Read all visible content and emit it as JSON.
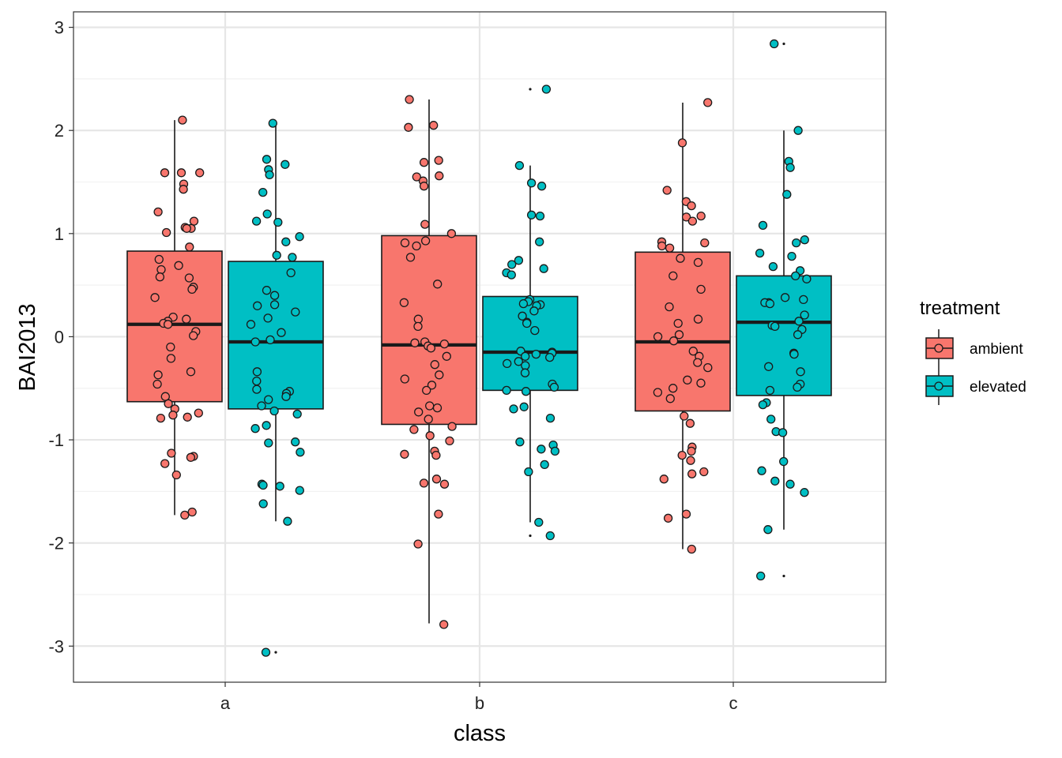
{
  "chart_data": {
    "type": "boxplot",
    "xlabel": "class",
    "ylabel": "BAI2013",
    "categories": [
      "a",
      "b",
      "c"
    ],
    "ylim": [
      -3.35,
      3.15
    ],
    "yticks": [
      -3,
      -2,
      -1,
      0,
      1,
      2,
      3
    ],
    "ytick_labels": [
      "-3",
      "-2",
      "-1",
      "0",
      "1",
      "2",
      "3"
    ],
    "grid": true,
    "legend": {
      "title": "treatment",
      "position": "right"
    },
    "series": [
      {
        "name": "ambient",
        "color": "#F8766D",
        "boxes": [
          {
            "category": "a",
            "whisker_low": -1.73,
            "q1": -0.63,
            "median": 0.12,
            "q3": 0.83,
            "whisker_high": 2.1,
            "outliers": []
          },
          {
            "category": "b",
            "whisker_low": -2.78,
            "q1": -0.85,
            "median": -0.08,
            "q3": 0.98,
            "whisker_high": 2.3,
            "outliers": []
          },
          {
            "category": "c",
            "whisker_low": -2.06,
            "q1": -0.72,
            "median": -0.05,
            "q3": 0.82,
            "whisker_high": 2.27,
            "outliers": []
          }
        ],
        "points": [
          {
            "category": "a",
            "values": [
              2.1,
              1.59,
              1.59,
              1.59,
              1.48,
              1.43,
              1.21,
              1.12,
              1.06,
              1.05,
              1.05,
              1.01,
              0.87,
              0.75,
              0.69,
              0.65,
              0.58,
              0.57,
              0.48,
              0.46,
              0.38,
              0.19,
              0.17,
              0.15,
              0.13,
              0.12,
              0.05,
              0.01,
              -0.1,
              -0.21,
              -0.34,
              -0.37,
              -0.46,
              -0.58,
              -0.65,
              -0.7,
              -0.74,
              -0.76,
              -0.78,
              -0.79,
              -1.13,
              -1.16,
              -1.17,
              -1.23,
              -1.34,
              -1.7,
              -1.73
            ]
          },
          {
            "category": "b",
            "values": [
              2.3,
              2.05,
              2.03,
              1.71,
              1.69,
              1.56,
              1.55,
              1.51,
              1.46,
              1.09,
              1.0,
              0.93,
              0.91,
              0.88,
              0.77,
              0.51,
              0.33,
              0.17,
              0.1,
              -0.05,
              -0.06,
              -0.07,
              -0.09,
              -0.11,
              -0.19,
              -0.27,
              -0.37,
              -0.41,
              -0.47,
              -0.52,
              -0.67,
              -0.69,
              -0.73,
              -0.8,
              -0.87,
              -0.9,
              -0.96,
              -1.01,
              -1.11,
              -1.14,
              -1.15,
              -1.38,
              -1.42,
              -1.43,
              -1.72,
              -2.01,
              -2.79
            ]
          },
          {
            "category": "c",
            "values": [
              2.27,
              1.88,
              1.42,
              1.31,
              1.27,
              1.17,
              1.16,
              1.12,
              0.92,
              0.91,
              0.88,
              0.86,
              0.76,
              0.72,
              0.59,
              0.46,
              0.29,
              0.17,
              0.13,
              0.02,
              0.0,
              -0.04,
              -0.14,
              -0.19,
              -0.25,
              -0.3,
              -0.42,
              -0.45,
              -0.5,
              -0.54,
              -0.6,
              -0.77,
              -0.84,
              -1.07,
              -1.11,
              -1.15,
              -1.2,
              -1.31,
              -1.33,
              -1.38,
              -1.72,
              -1.76,
              -2.06
            ]
          }
        ]
      },
      {
        "name": "elevated",
        "color": "#00BFC4",
        "boxes": [
          {
            "category": "a",
            "whisker_low": -1.79,
            "q1": -0.7,
            "median": -0.05,
            "q3": 0.73,
            "whisker_high": 2.07,
            "outliers": [
              -3.06
            ]
          },
          {
            "category": "b",
            "whisker_low": -1.8,
            "q1": -0.52,
            "median": -0.15,
            "q3": 0.39,
            "whisker_high": 1.66,
            "outliers": [
              2.4,
              -1.93
            ]
          },
          {
            "category": "c",
            "whisker_low": -1.87,
            "q1": -0.57,
            "median": 0.14,
            "q3": 0.59,
            "whisker_high": 2.0,
            "outliers": [
              2.84,
              -2.32
            ]
          }
        ],
        "points": [
          {
            "category": "a",
            "values": [
              2.07,
              1.72,
              1.67,
              1.62,
              1.57,
              1.4,
              1.19,
              1.12,
              1.11,
              0.97,
              0.92,
              0.79,
              0.77,
              0.62,
              0.45,
              0.4,
              0.31,
              0.3,
              0.24,
              0.18,
              0.12,
              0.04,
              -0.03,
              -0.05,
              -0.34,
              -0.43,
              -0.51,
              -0.53,
              -0.55,
              -0.58,
              -0.61,
              -0.67,
              -0.72,
              -0.75,
              -0.86,
              -0.89,
              -1.02,
              -1.03,
              -1.12,
              -1.43,
              -1.44,
              -1.45,
              -1.49,
              -1.62,
              -1.79,
              -3.06
            ]
          },
          {
            "category": "b",
            "values": [
              2.4,
              1.66,
              1.49,
              1.46,
              1.18,
              1.17,
              0.92,
              0.74,
              0.7,
              0.66,
              0.62,
              0.6,
              0.36,
              0.34,
              0.32,
              0.31,
              0.3,
              0.25,
              0.2,
              0.14,
              0.13,
              0.06,
              -0.14,
              -0.15,
              -0.16,
              -0.17,
              -0.19,
              -0.2,
              -0.24,
              -0.26,
              -0.28,
              -0.35,
              -0.46,
              -0.49,
              -0.52,
              -0.53,
              -0.68,
              -0.7,
              -0.79,
              -1.02,
              -1.05,
              -1.09,
              -1.11,
              -1.24,
              -1.31,
              -1.8,
              -1.93
            ]
          },
          {
            "category": "c",
            "values": [
              2.84,
              2.0,
              1.7,
              1.64,
              1.38,
              1.08,
              0.94,
              0.91,
              0.81,
              0.78,
              0.68,
              0.64,
              0.59,
              0.56,
              0.38,
              0.36,
              0.33,
              0.33,
              0.32,
              0.21,
              0.15,
              0.11,
              0.1,
              0.07,
              0.02,
              -0.16,
              -0.17,
              -0.29,
              -0.34,
              -0.46,
              -0.49,
              -0.52,
              -0.64,
              -0.66,
              -0.8,
              -0.92,
              -0.93,
              -1.21,
              -1.3,
              -1.4,
              -1.43,
              -1.51,
              -1.87,
              -2.32
            ]
          }
        ]
      }
    ]
  }
}
